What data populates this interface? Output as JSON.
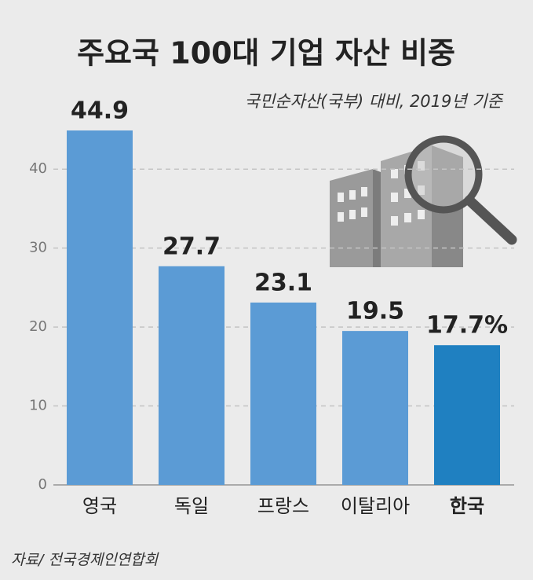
{
  "chart_data": {
    "type": "bar",
    "title": "주요국 100대 기업 자산 비중",
    "subtitle": "국민순자산(국부) 대비, 2019년 기준",
    "source": "자료/ 전국경제인연합회",
    "categories": [
      "영국",
      "독일",
      "프랑스",
      "이탈리아",
      "한국"
    ],
    "values": [
      44.9,
      27.7,
      23.1,
      19.5,
      17.7
    ],
    "value_labels": [
      "44.9",
      "27.7",
      "23.1",
      "19.5",
      "17.7%"
    ],
    "colors": [
      "#5b9bd5",
      "#5b9bd5",
      "#5b9bd5",
      "#5b9bd5",
      "#1f80c1"
    ],
    "ylim": [
      0,
      45
    ],
    "yticks": [
      0,
      10,
      20,
      30,
      40
    ],
    "grid": true
  }
}
